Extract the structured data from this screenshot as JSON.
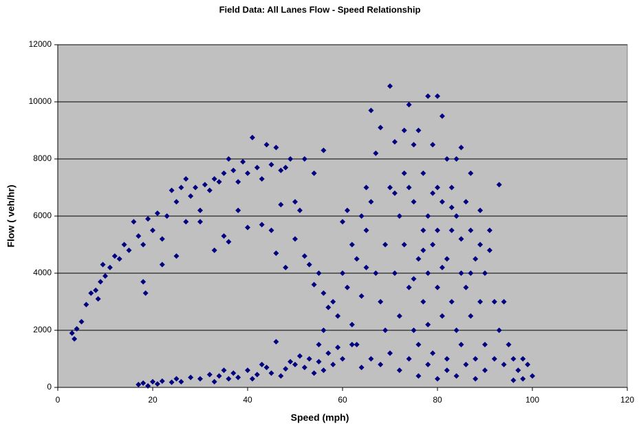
{
  "chart_data": {
    "type": "scatter",
    "title": "Field Data: All Lanes Flow - Speed Relationship",
    "x_label": "Speed (mph)",
    "y_label": "Flow ( veh/hr)",
    "color": "#000080",
    "background": "#c0c0c0",
    "grid": true,
    "xlim": [
      0,
      120
    ],
    "xticks": [
      0,
      20,
      40,
      60,
      80,
      100,
      120
    ],
    "ylim": [
      0,
      12000
    ],
    "yticks": [
      0,
      2000,
      4000,
      6000,
      8000,
      10000,
      12000
    ],
    "x": [
      3,
      3.5,
      4,
      5,
      6,
      7,
      8,
      8.5,
      9,
      9.5,
      10,
      11,
      12,
      13,
      14,
      15,
      16,
      17,
      18,
      18.5,
      19,
      20,
      21,
      22,
      23,
      24,
      25,
      26,
      27,
      28,
      29,
      30,
      31,
      32,
      33,
      34,
      35,
      36,
      37,
      38,
      39,
      40,
      41,
      42,
      43,
      44,
      45,
      46,
      47,
      48,
      49,
      50,
      52,
      54,
      56,
      27,
      30,
      35,
      38,
      40,
      45,
      47,
      50,
      53,
      55,
      36,
      22,
      25,
      33,
      43,
      46,
      48,
      51,
      54,
      52,
      56,
      18,
      17,
      18,
      19,
      20,
      21,
      22,
      24,
      25,
      26,
      28,
      30,
      32,
      34,
      35,
      37,
      38,
      40,
      42,
      44,
      45,
      46,
      48,
      50,
      52,
      53,
      55,
      56,
      57,
      58,
      59,
      60,
      33,
      36,
      41,
      43,
      47,
      49,
      51,
      54,
      55,
      56,
      57,
      58,
      59,
      60,
      61,
      62,
      63,
      64,
      65,
      62,
      63,
      64,
      65,
      66,
      66,
      61,
      60,
      67,
      68,
      68,
      69,
      70,
      70,
      71,
      71,
      72,
      72,
      73,
      73,
      74,
      74,
      74,
      75,
      75,
      75,
      76,
      76,
      76,
      77,
      77,
      77,
      78,
      78,
      78,
      78,
      79,
      79,
      79,
      80,
      80,
      80,
      80,
      81,
      81,
      81,
      82,
      82,
      82,
      83,
      83,
      83,
      84,
      84,
      84,
      85,
      85,
      85,
      86,
      86,
      87,
      87,
      87,
      88,
      88,
      89,
      89,
      90,
      90,
      91,
      92,
      93,
      93,
      94,
      95,
      96,
      97,
      98,
      99,
      100,
      98,
      96,
      94,
      92,
      90,
      88,
      86,
      84,
      82,
      80,
      78,
      76,
      74,
      72,
      70,
      68,
      66,
      64,
      62,
      77,
      79,
      81,
      83,
      75,
      73,
      85,
      87,
      89,
      91,
      71,
      69,
      67,
      65
    ],
    "y": [
      1900,
      1700,
      2050,
      2300,
      2900,
      3300,
      3400,
      3100,
      3700,
      4300,
      3900,
      4200,
      4600,
      4500,
      5000,
      4800,
      5800,
      5300,
      5000,
      3300,
      5900,
      5500,
      6100,
      5200,
      6000,
      6900,
      6500,
      7000,
      7300,
      6700,
      7000,
      6200,
      7100,
      6900,
      7300,
      7200,
      7500,
      8000,
      7600,
      7200,
      7900,
      7500,
      8750,
      7700,
      7300,
      8500,
      7800,
      8400,
      7600,
      7700,
      8000,
      6500,
      8000,
      7500,
      8300,
      5800,
      5800,
      5300,
      6200,
      5600,
      5500,
      6400,
      5200,
      4300,
      4000,
      5100,
      4300,
      4600,
      4800,
      5700,
      4700,
      4200,
      6200,
      3600,
      4600,
      3300,
      3700,
      100,
      150,
      50,
      200,
      120,
      220,
      180,
      300,
      200,
      350,
      300,
      450,
      400,
      600,
      500,
      350,
      600,
      450,
      700,
      500,
      1600,
      650,
      800,
      700,
      1000,
      900,
      600,
      1200,
      800,
      1400,
      1000,
      200,
      300,
      300,
      800,
      400,
      900,
      1100,
      500,
      1500,
      2000,
      2800,
      3000,
      2500,
      4000,
      3500,
      5000,
      4500,
      6000,
      5500,
      2200,
      1500,
      3200,
      4200,
      6500,
      9700,
      6200,
      5800,
      8200,
      9100,
      3000,
      5000,
      10550,
      7000,
      4000,
      8600,
      2500,
      6000,
      9000,
      5000,
      9900,
      3500,
      7000,
      2000,
      6500,
      8500,
      4500,
      9000,
      1500,
      7500,
      3000,
      5500,
      10200,
      6000,
      2200,
      4000,
      8500,
      5000,
      1200,
      10200,
      7000,
      3500,
      5500,
      9500,
      6500,
      2500,
      4500,
      8000,
      1000,
      7000,
      3000,
      5500,
      6000,
      2000,
      8000,
      8400,
      4000,
      1500,
      6500,
      3500,
      5500,
      7500,
      2500,
      4500,
      1000,
      5000,
      3000,
      4000,
      1500,
      5500,
      3000,
      7100,
      2000,
      3000,
      1500,
      1000,
      600,
      1000,
      800,
      400,
      300,
      250,
      800,
      1000,
      600,
      300,
      800,
      400,
      600,
      300,
      800,
      400,
      1000,
      600,
      1200,
      800,
      1000,
      700,
      1500,
      4800,
      6800,
      4200,
      6300,
      3800,
      7500,
      5200,
      4000,
      6200,
      4800,
      6800,
      2000,
      4000,
      7000
    ]
  }
}
